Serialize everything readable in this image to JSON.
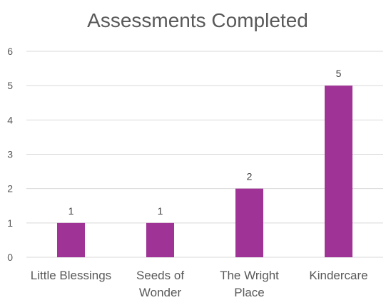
{
  "chart_data": {
    "type": "bar",
    "title": "Assessments Completed",
    "categories": [
      "Little Blessings",
      "Seeds of Wonder",
      "The Wright Place",
      "Kindercare"
    ],
    "category_lines": [
      [
        "Little Blessings"
      ],
      [
        "Seeds of",
        "Wonder"
      ],
      [
        "The Wright",
        "Place"
      ],
      [
        "Kindercare"
      ]
    ],
    "values": [
      1,
      1,
      2,
      5
    ],
    "data_labels": [
      "1",
      "1",
      "2",
      "5"
    ],
    "ylim": [
      0,
      6
    ],
    "yticks": [
      0,
      1,
      2,
      3,
      4,
      5,
      6
    ],
    "xlabel": "",
    "ylabel": "",
    "grid": true,
    "legend": "none",
    "bar_color": "#A03396",
    "grid_color": "#D9D9D9"
  }
}
